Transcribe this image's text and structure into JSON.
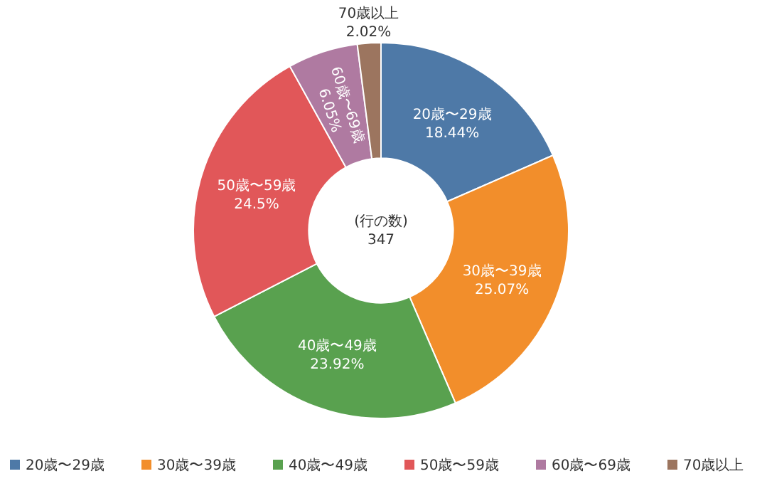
{
  "chart_data": {
    "type": "donut",
    "categories": [
      "20歳〜29歳",
      "30歳〜39歳",
      "40歳〜49歳",
      "50歳〜59歳",
      "60歳〜69歳",
      "70歳以上"
    ],
    "values": [
      18.44,
      25.07,
      23.92,
      24.5,
      6.05,
      2.02
    ],
    "value_labels": [
      "18.44%",
      "25.07%",
      "23.92%",
      "24.5%",
      "6.05%",
      "2.02%"
    ],
    "colors": [
      "#4e79a7",
      "#f28e2b",
      "#59a14f",
      "#e15759",
      "#af7aa1",
      "#9c755f"
    ],
    "annotations": [
      "(行の数)",
      "347"
    ],
    "legend": "bottom"
  }
}
